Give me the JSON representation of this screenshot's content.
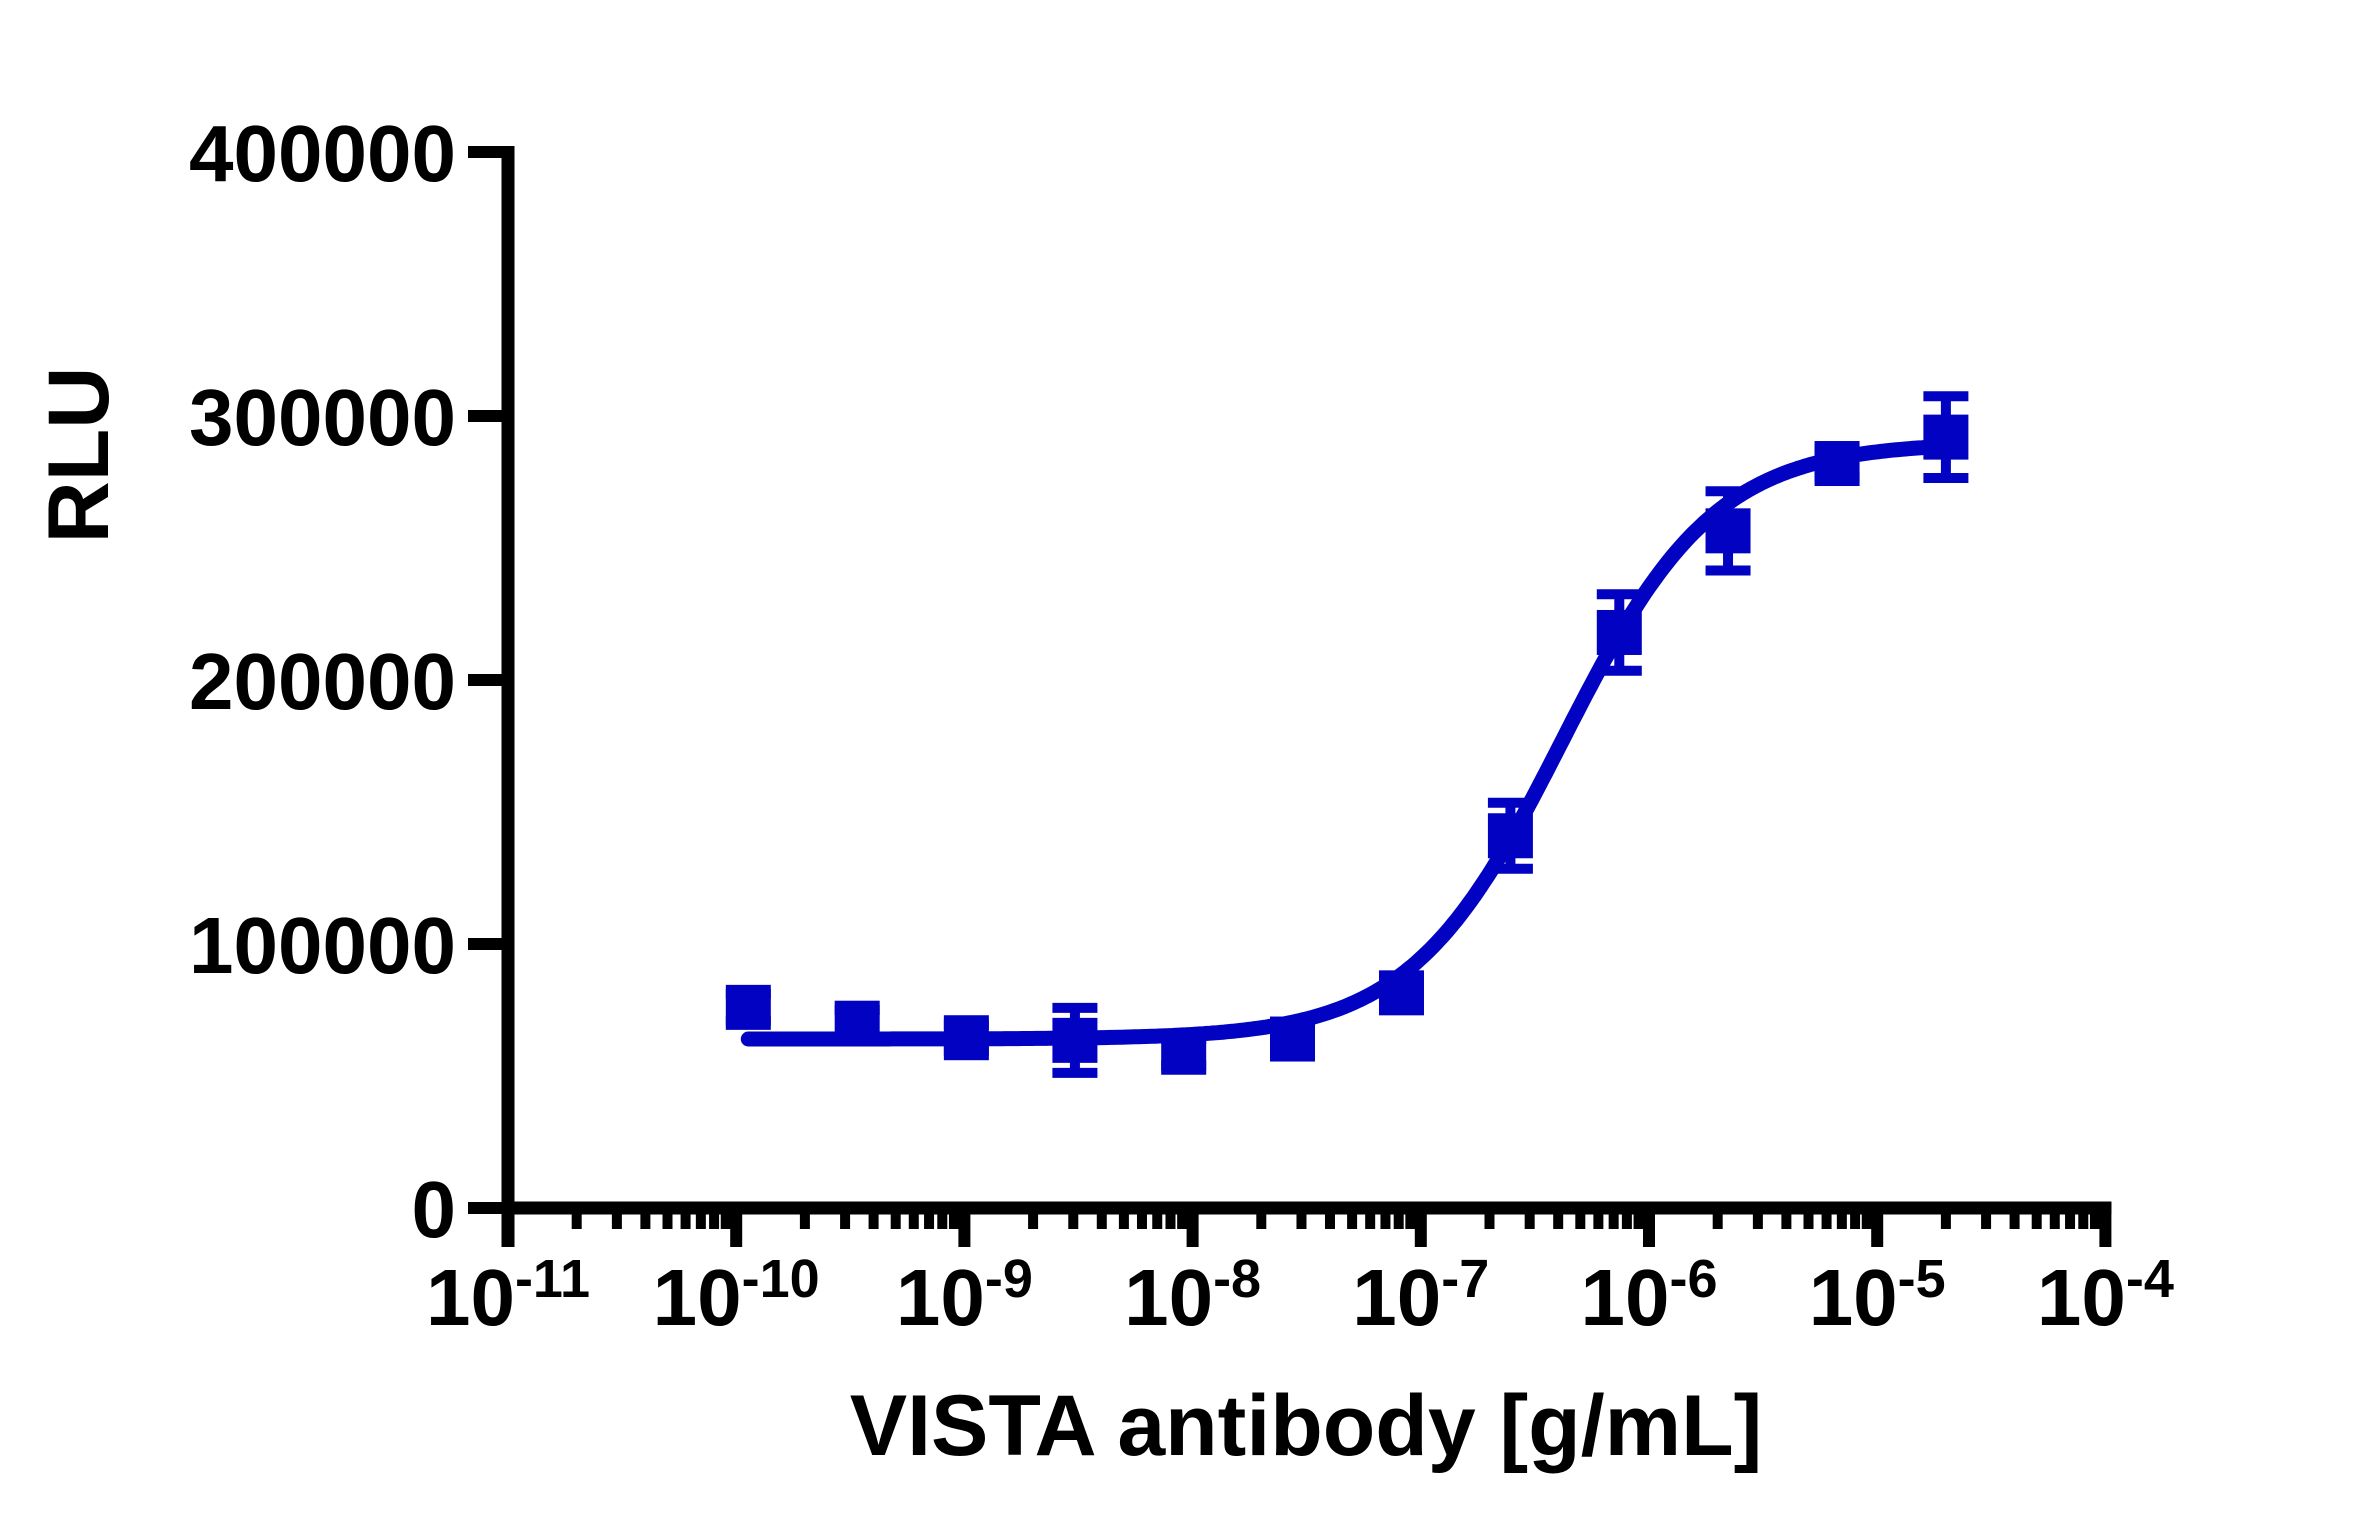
{
  "chart_data": {
    "type": "scatter",
    "title": "",
    "xlabel": "VISTA antibody [g/mL]",
    "ylabel": "RLU",
    "x_scale": "log10",
    "x_log_min": -11,
    "x_log_max": -4,
    "x_tick_exponents": [
      -11,
      -10,
      -9,
      -8,
      -7,
      -6,
      -5,
      -4
    ],
    "x_tick_base": "10",
    "x_minor_ticks_per_decade": [
      2,
      3,
      4,
      5,
      6,
      7,
      8,
      9
    ],
    "ylim": [
      0,
      400000
    ],
    "y_ticks": [
      0,
      100000,
      200000,
      300000,
      400000
    ],
    "y_tick_labels": [
      "0",
      "100000",
      "200000",
      "300000",
      "400000"
    ],
    "grid": false,
    "legend": "none",
    "series": [
      {
        "name": "VISTA antibody",
        "marker": "square",
        "color": "#0202c2",
        "x_g_per_mL": [
          1.13e-10,
          3.39e-10,
          1.02e-09,
          3.05e-09,
          9.14e-09,
          2.74e-08,
          8.23e-08,
          2.47e-07,
          7.41e-07,
          2.22e-06,
          6.67e-06,
          2e-05
        ],
        "y_rlu": [
          76000,
          70000,
          64500,
          63500,
          59000,
          64000,
          81500,
          141000,
          218000,
          256500,
          282000,
          292000
        ],
        "y_sd": [
          5000,
          5000,
          5000,
          12300,
          5000,
          5000,
          5000,
          12500,
          14500,
          15000,
          5000,
          15500
        ]
      }
    ],
    "fit_curve": {
      "model": "4PL",
      "bottom": 64000,
      "top": 290000,
      "log_ec50": -6.38,
      "hill": 1.3,
      "x_range_log": [
        -9.947,
        -4.699
      ]
    }
  }
}
